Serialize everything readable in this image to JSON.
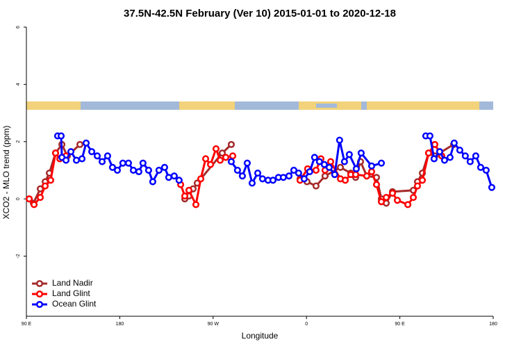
{
  "chart_data": {
    "type": "line",
    "title": "37.5N-42.5N February (Ver 10)   2015-01-01 to 2020-12-18",
    "x_label": "Longitude",
    "y_label": "XCO2 - MLO trend (ppm)",
    "xlim": [
      90,
      540
    ],
    "ylim": [
      -4.1,
      6
    ],
    "xticks": [
      {
        "value": 90,
        "label": "90 E"
      },
      180,
      {
        "value": 270,
        "label": "90 W"
      },
      {
        "value": 360,
        "label": "0"
      },
      {
        "value": 450,
        "label": "90 E"
      },
      {
        "value": 540,
        "label": "180"
      }
    ],
    "yticks": [
      -2,
      0,
      2,
      4,
      6
    ],
    "legend": "bottom-left",
    "series": [
      {
        "name": "Land Nadir",
        "color": "#a52a2a",
        "x": [
          92.7,
          96.7,
          103.4,
          108.1,
          112.1,
          118.1,
          124.2,
          129.5,
          141.6,
          242.7,
          246.7,
          250.7,
          254.7,
          278.8,
          287.5,
          353.8,
          360.5,
          369.2,
          377.9,
          392.7,
          402.7,
          407.4,
          412.1,
          418.1,
          427.5,
          432.2,
          436.9,
          442.9,
          463.0,
          467.0,
          471.7,
          477.7,
          483.7,
          501.8
        ],
        "values": [
          0.0,
          -0.15,
          0.35,
          0.6,
          0.9,
          1.6,
          1.9,
          1.5,
          1.9,
          0.0,
          0.1,
          0.35,
          0.55,
          1.6,
          1.9,
          0.7,
          0.6,
          0.45,
          0.8,
          1.1,
          0.9,
          0.75,
          1.3,
          0.8,
          0.75,
          0.0,
          -0.15,
          0.25,
          0.3,
          0.6,
          0.9,
          1.6,
          1.5,
          1.9
        ]
      },
      {
        "name": "Land Glint",
        "color": "#ff0000",
        "x": [
          92.7,
          97.4,
          103.4,
          108.1,
          113.4,
          118.1,
          122.2,
          128.2,
          238.7,
          242.7,
          246.7,
          253.4,
          258.1,
          262.8,
          267.5,
          272.8,
          276.8,
          282.2,
          288.9,
          353.8,
          361.1,
          369.2,
          373.9,
          377.9,
          383.3,
          392.7,
          397.4,
          402.7,
          407.4,
          418.1,
          422.8,
          427.5,
          432.2,
          436.9,
          442.9,
          447.6,
          457.7,
          463.0,
          467.0,
          471.7,
          477.7,
          483.7,
          490.4
        ],
        "values": [
          0.0,
          -0.2,
          0.05,
          0.45,
          0.65,
          1.6,
          1.4,
          1.5,
          0.5,
          0.1,
          0.3,
          -0.2,
          0.7,
          1.4,
          1.2,
          1.75,
          1.35,
          1.45,
          1.5,
          0.65,
          1.05,
          1.0,
          1.4,
          1.0,
          1.3,
          0.7,
          0.65,
          0.85,
          0.85,
          0.8,
          0.95,
          0.5,
          -0.1,
          0.05,
          0.2,
          -0.05,
          -0.2,
          0.05,
          0.45,
          0.65,
          1.6,
          1.9,
          1.5
        ]
      },
      {
        "name": "Ocean Glint",
        "color": "#0000ff",
        "x": [
          120.1,
          123.5,
          124.2,
          128.2,
          132.9,
          138.2,
          143.6,
          147.6,
          153.0,
          158.3,
          163.0,
          168.3,
          173.0,
          177.7,
          183.0,
          188.4,
          193.1,
          198.4,
          202.4,
          207.8,
          211.8,
          217.8,
          223.2,
          227.2,
          232.5,
          237.2,
          287.5,
          293.5,
          298.2,
          302.9,
          307.6,
          313.0,
          317.6,
          323.0,
          327.7,
          333.0,
          337.7,
          343.1,
          347.8,
          352.4,
          357.8,
          363.1,
          367.8,
          372.5,
          377.2,
          381.9,
          387.2,
          391.9,
          396.6,
          401.3,
          408.0,
          412.7,
          422.8,
          432.2,
          475.0,
          479.0,
          483.0,
          488.4,
          493.1,
          498.4,
          502.4,
          507.8,
          513.1,
          517.8,
          523.2,
          527.9,
          533.2,
          538.6
        ],
        "values": [
          2.2,
          2.2,
          1.45,
          1.35,
          1.65,
          1.35,
          1.4,
          1.95,
          1.65,
          1.5,
          1.3,
          1.5,
          1.1,
          1.0,
          1.25,
          1.25,
          1.0,
          0.95,
          1.25,
          1.0,
          0.6,
          1.0,
          1.1,
          0.75,
          0.8,
          0.65,
          1.3,
          1.0,
          0.8,
          1.25,
          0.55,
          0.9,
          0.7,
          0.65,
          0.65,
          0.75,
          0.75,
          0.8,
          1.0,
          0.9,
          0.7,
          0.95,
          1.45,
          1.3,
          1.2,
          1.1,
          0.85,
          2.05,
          1.3,
          1.55,
          1.05,
          1.6,
          1.15,
          1.25,
          2.2,
          2.2,
          1.4,
          1.65,
          1.35,
          1.45,
          1.95,
          1.7,
          1.5,
          1.3,
          1.5,
          1.1,
          1.0,
          0.4
        ]
      }
    ]
  }
}
